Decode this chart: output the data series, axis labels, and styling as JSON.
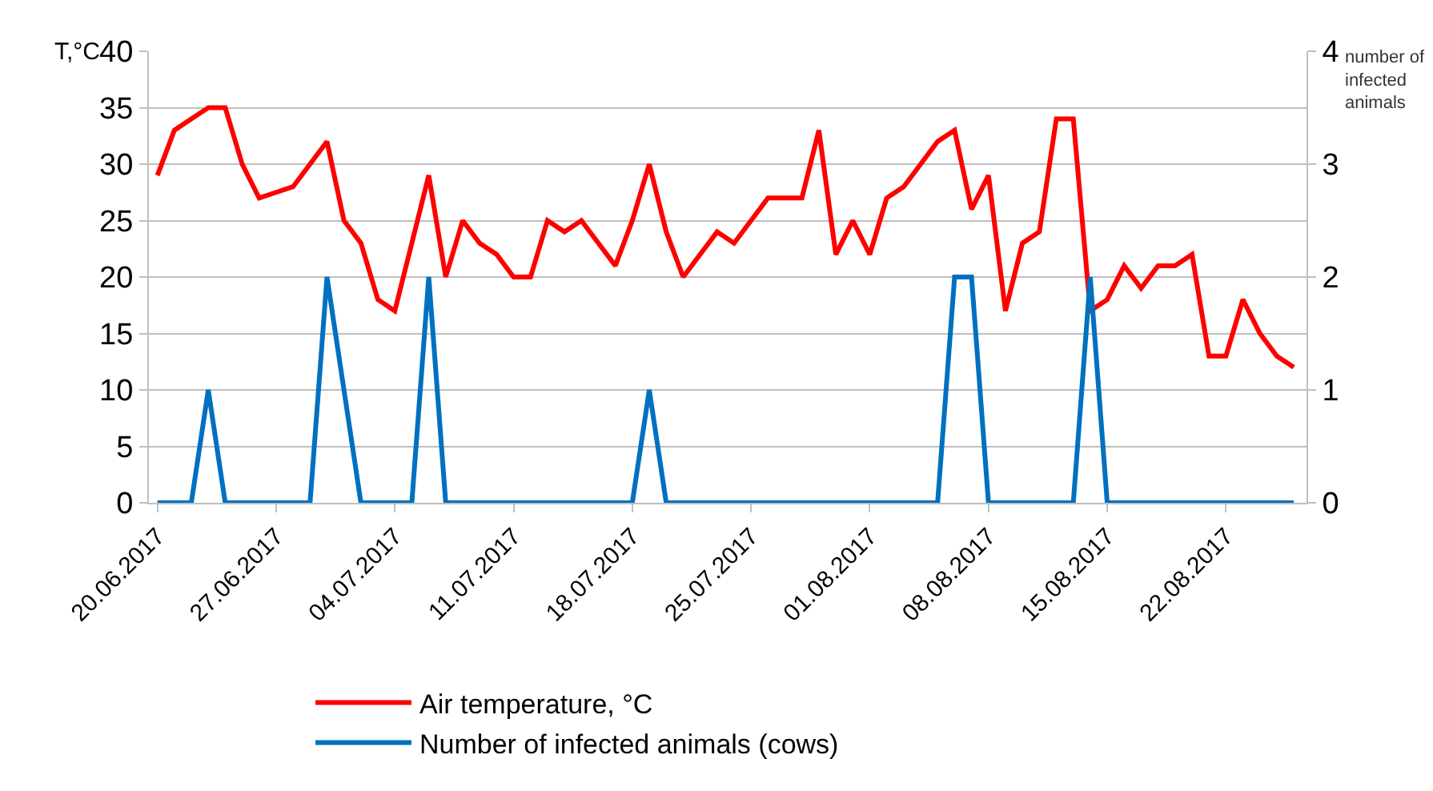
{
  "chart_data": {
    "type": "line",
    "ylabel": "T,°C",
    "y2label": "number of infected animals",
    "x": [
      "2017-06-20",
      "2017-06-21",
      "2017-06-22",
      "2017-06-23",
      "2017-06-24",
      "2017-06-25",
      "2017-06-26",
      "2017-06-27",
      "2017-06-28",
      "2017-06-29",
      "2017-06-30",
      "2017-07-01",
      "2017-07-02",
      "2017-07-03",
      "2017-07-04",
      "2017-07-05",
      "2017-07-06",
      "2017-07-07",
      "2017-07-08",
      "2017-07-09",
      "2017-07-10",
      "2017-07-11",
      "2017-07-12",
      "2017-07-13",
      "2017-07-14",
      "2017-07-15",
      "2017-07-16",
      "2017-07-17",
      "2017-07-18",
      "2017-07-19",
      "2017-07-20",
      "2017-07-21",
      "2017-07-22",
      "2017-07-23",
      "2017-07-24",
      "2017-07-25",
      "2017-07-26",
      "2017-07-27",
      "2017-07-28",
      "2017-07-29",
      "2017-07-30",
      "2017-07-31",
      "2017-08-01",
      "2017-08-02",
      "2017-08-03",
      "2017-08-04",
      "2017-08-05",
      "2017-08-06",
      "2017-08-07",
      "2017-08-08",
      "2017-08-09",
      "2017-08-10",
      "2017-08-11",
      "2017-08-12",
      "2017-08-13",
      "2017-08-14",
      "2017-08-15",
      "2017-08-16",
      "2017-08-17",
      "2017-08-18",
      "2017-08-19",
      "2017-08-20",
      "2017-08-21",
      "2017-08-22",
      "2017-08-23",
      "2017-08-24",
      "2017-08-25",
      "2017-08-26"
    ],
    "series": [
      {
        "name": "Air temperature, °C",
        "color": "#ff0000",
        "values": [
          29,
          33,
          34,
          35,
          35,
          30,
          27,
          27.5,
          28,
          30,
          32,
          25,
          23,
          18,
          17,
          23,
          29,
          20,
          25,
          23,
          22,
          20,
          20,
          25,
          24,
          25,
          23,
          21,
          25,
          30,
          24,
          20,
          22,
          24,
          23,
          25,
          27,
          27,
          27,
          33,
          22,
          25,
          22,
          27,
          28,
          30,
          32,
          33,
          26,
          29,
          17,
          23,
          24,
          34,
          34,
          17,
          18,
          21,
          19,
          21,
          21,
          22,
          13,
          13,
          18,
          15,
          13,
          12
        ]
      },
      {
        "name": "Number of infected animals (cows)",
        "color": "#0070c0",
        "axis": "y2",
        "values": [
          0,
          0,
          0,
          1,
          0,
          0,
          0,
          0,
          0,
          0,
          2,
          1,
          0,
          0,
          0,
          0,
          2,
          0,
          0,
          0,
          0,
          0,
          0,
          0,
          0,
          0,
          0,
          0,
          0,
          1,
          0,
          0,
          0,
          0,
          0,
          0,
          0,
          0,
          0,
          0,
          0,
          0,
          0,
          0,
          0,
          0,
          0,
          2,
          2,
          0,
          0,
          0,
          0,
          0,
          0,
          2,
          0,
          0,
          0,
          0,
          0,
          0,
          0,
          0,
          0,
          0,
          0,
          0
        ]
      }
    ],
    "xlim": [
      "2017-06-19T12:00",
      "2017-08-26T18:00"
    ],
    "xticks": [
      {
        "value": "2017-06-20",
        "label": "20.06.2017"
      },
      {
        "value": "2017-06-27",
        "label": "27.06.2017"
      },
      {
        "value": "2017-07-04",
        "label": "04.07.2017"
      },
      {
        "value": "2017-07-11",
        "label": "11.07.2017"
      },
      {
        "value": "2017-07-18",
        "label": "18.07.2017"
      },
      {
        "value": "2017-07-25",
        "label": "25.07.2017"
      },
      {
        "value": "2017-08-01",
        "label": "01.08.2017"
      },
      {
        "value": "2017-08-08",
        "label": "08.08.2017"
      },
      {
        "value": "2017-08-15",
        "label": "15.08.2017"
      },
      {
        "value": "2017-08-22",
        "label": "22.08.2017"
      }
    ],
    "ylim": [
      0,
      40
    ],
    "yticks": [
      0,
      5,
      10,
      15,
      20,
      25,
      30,
      35,
      40
    ],
    "y2lim": [
      0,
      4
    ],
    "y2ticks": [
      0,
      1,
      2,
      3,
      4
    ],
    "grid": "y",
    "legend": "bottom",
    "marker": "none",
    "line_style": "solid"
  }
}
